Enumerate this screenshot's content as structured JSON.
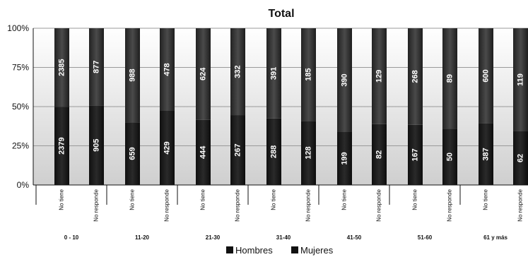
{
  "chart_data": {
    "type": "bar",
    "stacked": true,
    "normalized": true,
    "title": "Total",
    "yticks": [
      "0%",
      "25%",
      "50%",
      "75%",
      "100%"
    ],
    "ylim": [
      0,
      100
    ],
    "groups": [
      "0 - 10",
      "11-20",
      "21-30",
      "31-40",
      "41-50",
      "51-60",
      "61 y más"
    ],
    "subcategories": [
      "No tiene",
      "No responde"
    ],
    "categories": [
      "No tiene",
      "No responde",
      "No tiene",
      "No responde",
      "No tiene",
      "No responde",
      "No tiene",
      "No responde",
      "No tiene",
      "No responde",
      "No tiene",
      "No responde",
      "No tiene",
      "No responde"
    ],
    "series": [
      {
        "name": "Hombres",
        "values": [
          2379,
          905,
          659,
          429,
          444,
          267,
          288,
          128,
          199,
          82,
          167,
          50,
          387,
          62
        ]
      },
      {
        "name": "Mujeres",
        "values": [
          2385,
          877,
          988,
          478,
          624,
          332,
          391,
          185,
          390,
          129,
          268,
          89,
          600,
          119
        ]
      }
    ],
    "legend": {
      "position": "bottom"
    },
    "grid": true,
    "colors": {
      "hombres": "#1a1a1a",
      "mujeres": "#3a3a3a",
      "plot_bg_top": "#ffffff",
      "plot_bg_bottom": "#cfcfcf"
    }
  }
}
